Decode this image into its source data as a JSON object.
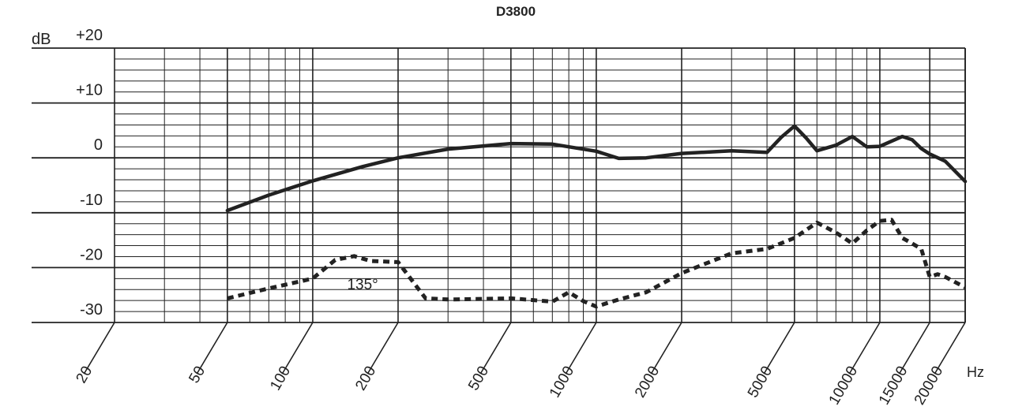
{
  "chart_data": {
    "type": "line",
    "title": "D3800",
    "ylabel": "dB",
    "xlabel": "Hz",
    "x_scale": "log",
    "xlim": [
      20,
      20000
    ],
    "ylim": [
      -30,
      20
    ],
    "grid": true,
    "x_ticks": [
      {
        "value": 20,
        "label": "20"
      },
      {
        "value": 50,
        "label": "50"
      },
      {
        "value": 100,
        "label": "100"
      },
      {
        "value": 200,
        "label": "200"
      },
      {
        "value": 500,
        "label": "500"
      },
      {
        "value": 1000,
        "label": "1000"
      },
      {
        "value": 2000,
        "label": "2000"
      },
      {
        "value": 5000,
        "label": "5000"
      },
      {
        "value": 10000,
        "label": "10000"
      },
      {
        "value": 15000,
        "label": "15000"
      },
      {
        "value": 20000,
        "label": "20000"
      }
    ],
    "y_ticks": [
      {
        "value": 20,
        "label": "+20"
      },
      {
        "value": 10,
        "label": "+10"
      },
      {
        "value": 0,
        "label": "0"
      },
      {
        "value": -10,
        "label": "-10"
      },
      {
        "value": -20,
        "label": "-20"
      },
      {
        "value": -30,
        "label": "-30"
      }
    ],
    "series": [
      {
        "name": "",
        "style": "solid",
        "x": [
          50,
          70,
          100,
          150,
          200,
          300,
          500,
          700,
          1000,
          1200,
          1500,
          2000,
          3000,
          4000,
          4500,
          5000,
          5500,
          6000,
          7000,
          8000,
          9000,
          10000,
          12000,
          13000,
          14000,
          15000,
          17000,
          20000
        ],
        "y": [
          -9.6,
          -6.8,
          -4.2,
          -1.6,
          0,
          1.6,
          2.6,
          2.5,
          1.2,
          -0.1,
          0,
          0.8,
          1.3,
          1,
          3.8,
          5.8,
          3.6,
          1.3,
          2.3,
          3.9,
          2,
          2.1,
          3.9,
          3.3,
          1.7,
          0.7,
          -0.6,
          -4.3
        ]
      },
      {
        "name": "135°",
        "style": "dotted",
        "x": [
          50,
          70,
          100,
          120,
          140,
          160,
          200,
          250,
          300,
          400,
          500,
          700,
          800,
          900,
          1000,
          1200,
          1500,
          2000,
          3000,
          4000,
          5000,
          6000,
          7000,
          8000,
          9000,
          10000,
          11000,
          12000,
          13000,
          14000,
          15000,
          16000,
          17000,
          20000
        ],
        "y": [
          -25.6,
          -23.8,
          -22,
          -18.6,
          -17.9,
          -18.8,
          -19,
          -25.6,
          -25.8,
          -25.7,
          -25.6,
          -26.2,
          -24.5,
          -26.1,
          -27.1,
          -25.8,
          -24.5,
          -21,
          -17.4,
          -16.6,
          -14.6,
          -11.8,
          -13.6,
          -15.6,
          -13.2,
          -11.5,
          -11.3,
          -14.6,
          -15.6,
          -16.6,
          -21.7,
          -21.2,
          -21.7,
          -23.6
        ]
      }
    ],
    "annotations": [
      {
        "text": "135°",
        "x": 150,
        "y": -24
      }
    ]
  }
}
